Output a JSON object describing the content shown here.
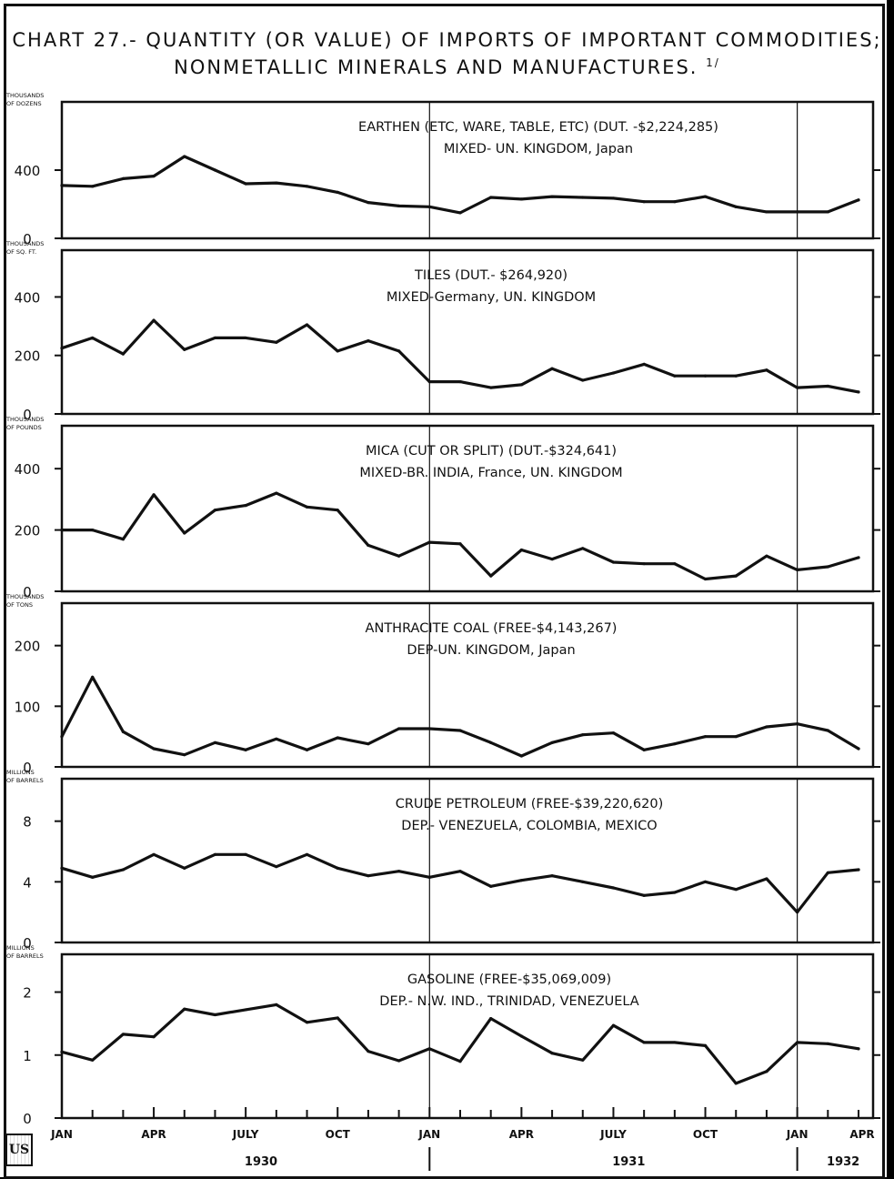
{
  "title_line1": "CHART 27.- QUANTITY (OR VALUE) OF IMPORTS OF IMPORTANT COMMODITIES;",
  "title_line2": "NONMETALLIC MINERALS AND MANUFACTURES.",
  "footnote_mark": "1/",
  "colors": {
    "ink": "#111111",
    "paper": "#ffffff"
  },
  "x_tick_labels": [
    "JAN",
    "APR",
    "JULY",
    "OCT",
    "JAN",
    "APR",
    "JULY",
    "OCT",
    "JAN",
    "APR"
  ],
  "year_labels": [
    "1930",
    "1931",
    "1932"
  ],
  "chart_data": [
    {
      "type": "line",
      "unit_label": [
        "THOUSANDS",
        "OF DOZENS"
      ],
      "label_line1": "EARTHEN (ETC, WARE, TABLE, ETC) (DUT. -$2,224,285)",
      "label_line2": "MIXED- UN. KINGDOM, Japan",
      "yticks": [
        0,
        400
      ],
      "ylim": [
        0,
        800
      ],
      "x": [
        "1930-01",
        "1930-02",
        "1930-03",
        "1930-04",
        "1930-05",
        "1930-06",
        "1930-07",
        "1930-08",
        "1930-09",
        "1930-10",
        "1930-11",
        "1930-12",
        "1931-01",
        "1931-02",
        "1931-03",
        "1931-04",
        "1931-05",
        "1931-06",
        "1931-07",
        "1931-08",
        "1931-09",
        "1931-10",
        "1931-11",
        "1931-12",
        "1932-01",
        "1932-02",
        "1932-03"
      ],
      "values": [
        310,
        305,
        350,
        365,
        480,
        400,
        320,
        325,
        305,
        270,
        210,
        190,
        185,
        150,
        240,
        230,
        245,
        240,
        235,
        215,
        215,
        245,
        185,
        155,
        155,
        155,
        225
      ]
    },
    {
      "type": "line",
      "unit_label": [
        "THOUSANDS",
        "OF SQ. FT."
      ],
      "label_line1": "TILES (DUT.- $264,920)",
      "label_line2": "MIXED-Germany, UN. KINGDOM",
      "yticks": [
        0,
        200,
        400
      ],
      "ylim": [
        0,
        560
      ],
      "x": [
        "1930-01",
        "1930-02",
        "1930-03",
        "1930-04",
        "1930-05",
        "1930-06",
        "1930-07",
        "1930-08",
        "1930-09",
        "1930-10",
        "1930-11",
        "1930-12",
        "1931-01",
        "1931-02",
        "1931-03",
        "1931-04",
        "1931-05",
        "1931-06",
        "1931-07",
        "1931-08",
        "1931-09",
        "1931-10",
        "1931-11",
        "1931-12",
        "1932-01",
        "1932-02",
        "1932-03"
      ],
      "values": [
        225,
        260,
        205,
        320,
        220,
        260,
        260,
        245,
        305,
        215,
        250,
        215,
        110,
        110,
        90,
        100,
        155,
        115,
        140,
        170,
        130,
        130,
        130,
        150,
        90,
        95,
        75
      ]
    },
    {
      "type": "line",
      "unit_label": [
        "THOUSANDS",
        "OF POUNDS"
      ],
      "label_line1": "MICA (CUT OR SPLIT) (DUT.-$324,641)",
      "label_line2": "MIXED-BR. INDIA, France, UN. KINGDOM",
      "yticks": [
        0,
        200,
        400
      ],
      "ylim": [
        0,
        540
      ],
      "x": [
        "1930-01",
        "1930-02",
        "1930-03",
        "1930-04",
        "1930-05",
        "1930-06",
        "1930-07",
        "1930-08",
        "1930-09",
        "1930-10",
        "1930-11",
        "1930-12",
        "1931-01",
        "1931-02",
        "1931-03",
        "1931-04",
        "1931-05",
        "1931-06",
        "1931-07",
        "1931-08",
        "1931-09",
        "1931-10",
        "1931-11",
        "1931-12",
        "1932-01",
        "1932-02",
        "1932-03"
      ],
      "values": [
        200,
        200,
        170,
        315,
        190,
        265,
        280,
        320,
        275,
        265,
        150,
        115,
        160,
        155,
        50,
        135,
        105,
        140,
        95,
        90,
        90,
        40,
        50,
        115,
        70,
        80,
        110
      ]
    },
    {
      "type": "line",
      "unit_label": [
        "THOUSANDS",
        "OF TONS"
      ],
      "label_line1": "ANTHRACITE COAL (FREE-$4,143,267)",
      "label_line2": "DEP-UN. KINGDOM, Japan",
      "yticks": [
        0,
        100,
        200
      ],
      "ylim": [
        0,
        270
      ],
      "x": [
        "1930-01",
        "1930-02",
        "1930-03",
        "1930-04",
        "1930-05",
        "1930-06",
        "1930-07",
        "1930-08",
        "1930-09",
        "1930-10",
        "1930-11",
        "1930-12",
        "1931-01",
        "1931-02",
        "1931-03",
        "1931-04",
        "1931-05",
        "1931-06",
        "1931-07",
        "1931-08",
        "1931-09",
        "1931-10",
        "1931-11",
        "1931-12",
        "1932-01",
        "1932-02",
        "1932-03"
      ],
      "values": [
        50,
        148,
        58,
        30,
        20,
        40,
        28,
        46,
        28,
        48,
        38,
        63,
        63,
        60,
        40,
        18,
        40,
        53,
        56,
        28,
        38,
        50,
        50,
        66,
        71,
        60,
        30
      ]
    },
    {
      "type": "line",
      "unit_label": [
        "MILLIONS",
        "OF BARRELS"
      ],
      "label_line1": "CRUDE PETROLEUM (FREE-$39,220,620)",
      "label_line2": "DEP.- VENEZUELA, COLOMBIA, MEXICO",
      "yticks": [
        0,
        4,
        8
      ],
      "ylim": [
        0,
        10.8
      ],
      "x": [
        "1930-01",
        "1930-02",
        "1930-03",
        "1930-04",
        "1930-05",
        "1930-06",
        "1930-07",
        "1930-08",
        "1930-09",
        "1930-10",
        "1930-11",
        "1930-12",
        "1931-01",
        "1931-02",
        "1931-03",
        "1931-04",
        "1931-05",
        "1931-06",
        "1931-07",
        "1931-08",
        "1931-09",
        "1931-10",
        "1931-11",
        "1931-12",
        "1932-01",
        "1932-02",
        "1932-03"
      ],
      "values": [
        4.9,
        4.3,
        4.8,
        5.8,
        4.9,
        5.8,
        5.8,
        5.0,
        5.8,
        4.9,
        4.4,
        4.7,
        4.3,
        4.7,
        3.7,
        4.1,
        4.4,
        4.0,
        3.6,
        3.1,
        3.3,
        4.0,
        3.5,
        4.2,
        2.0,
        4.6,
        4.8
      ]
    },
    {
      "type": "line",
      "unit_label": [
        "MILLIONS",
        "OF BARRELS"
      ],
      "label_line1": "GASOLINE (FREE-$35,069,009)",
      "label_line2": "DEP.- N.W. IND., TRINIDAD, VENEZUELA",
      "yticks": [
        0,
        1,
        2
      ],
      "ylim": [
        0,
        2.6
      ],
      "x": [
        "1930-01",
        "1930-02",
        "1930-03",
        "1930-04",
        "1930-05",
        "1930-06",
        "1930-07",
        "1930-08",
        "1930-09",
        "1930-10",
        "1930-11",
        "1930-12",
        "1931-01",
        "1931-02",
        "1931-03",
        "1931-04",
        "1931-05",
        "1931-06",
        "1931-07",
        "1931-08",
        "1931-09",
        "1931-10",
        "1931-11",
        "1931-12",
        "1932-01",
        "1932-02",
        "1932-03"
      ],
      "values": [
        1.05,
        0.92,
        1.33,
        1.29,
        1.73,
        1.64,
        1.72,
        1.8,
        1.52,
        1.59,
        1.06,
        0.91,
        1.1,
        0.9,
        1.58,
        1.3,
        1.03,
        0.92,
        1.47,
        1.2,
        1.2,
        1.15,
        0.55,
        0.74,
        1.2,
        1.18,
        1.1
      ]
    }
  ]
}
